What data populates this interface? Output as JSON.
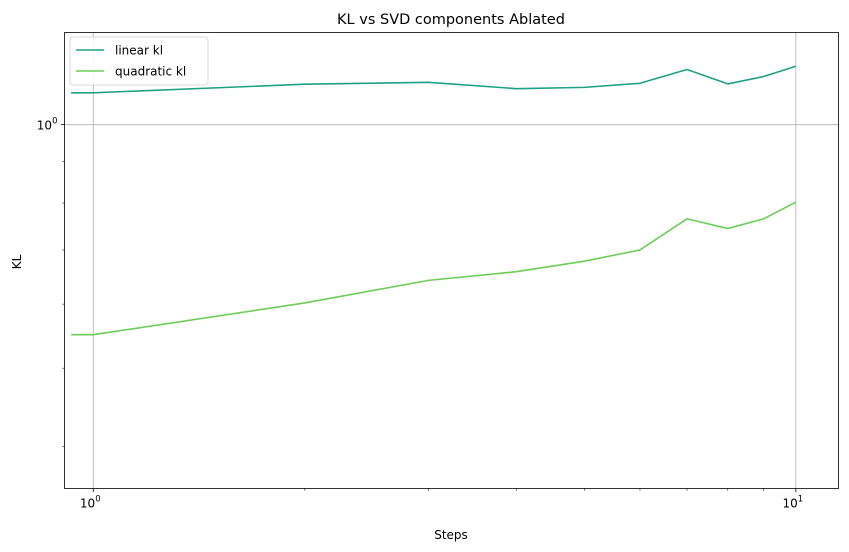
{
  "chart_data": {
    "type": "line",
    "title": "KL vs SVD components Ablated",
    "xlabel": "Steps",
    "ylabel": "KL",
    "xscale": "log",
    "yscale": "log",
    "xlim": [
      0.91,
      11.5
    ],
    "ylim": [
      0.355,
      1.3
    ],
    "grid": true,
    "legend_position": "top-left",
    "x_ticks": [
      {
        "value": 1,
        "base": "10",
        "exp": "0"
      },
      {
        "value": 10,
        "base": "10",
        "exp": "1"
      }
    ],
    "y_ticks": [
      {
        "value": 1,
        "base": "10",
        "exp": "0"
      }
    ],
    "series": [
      {
        "name": "linear kl",
        "color": "#1fa187",
        "x": [
          0.93,
          1,
          2,
          3,
          4,
          5,
          6,
          7,
          8,
          9,
          10
        ],
        "y": [
          1.095,
          1.095,
          1.122,
          1.128,
          1.108,
          1.112,
          1.125,
          1.17,
          1.123,
          1.147,
          1.181
        ]
      },
      {
        "name": "quadratic kl",
        "color": "#6ccd59",
        "x": [
          0.93,
          1,
          2,
          3,
          4,
          5,
          6,
          7,
          8,
          9,
          10
        ],
        "y": [
          0.55,
          0.55,
          0.602,
          0.642,
          0.658,
          0.678,
          0.7,
          0.765,
          0.744,
          0.765,
          0.802
        ]
      }
    ]
  }
}
